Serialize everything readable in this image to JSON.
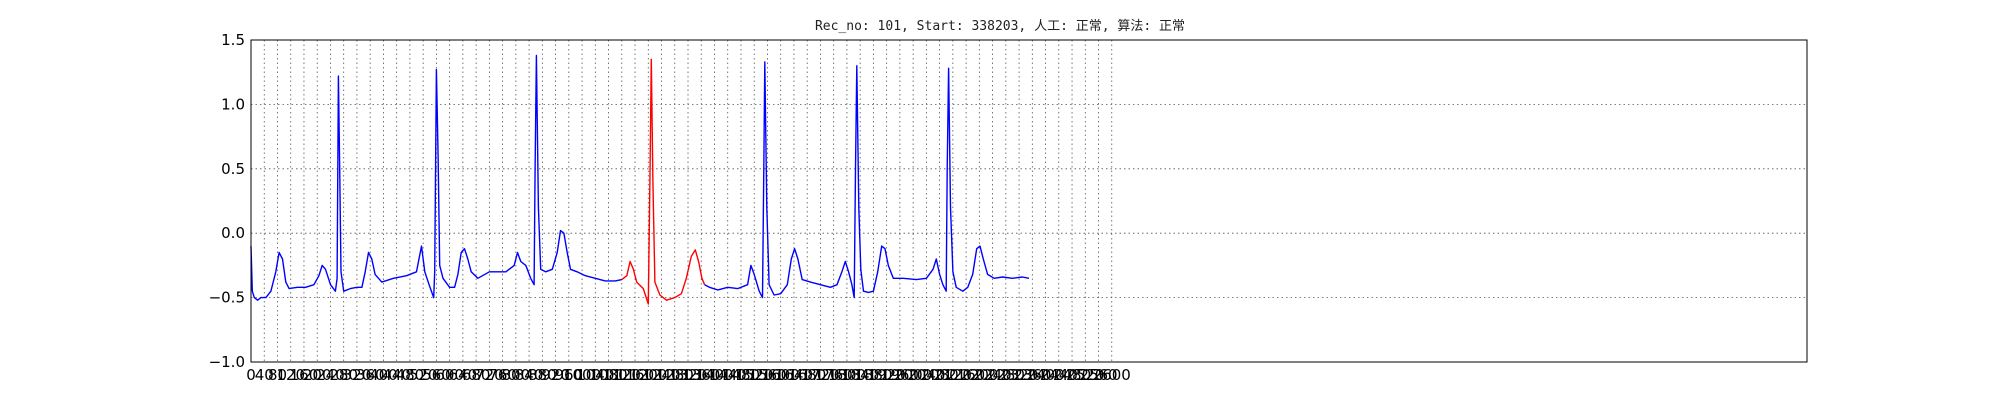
{
  "chart_data": {
    "type": "line",
    "title": "Rec_no: 101, Start: 338203, 人工: 正常, 算法: 正常",
    "xlabel": "",
    "ylabel": "",
    "xlim": [
      0,
      4700
    ],
    "ylim": [
      -1.0,
      1.5
    ],
    "grid": true,
    "y_ticks": [
      -1.0,
      -0.5,
      0.0,
      0.5,
      1.0,
      1.5
    ],
    "y_tick_labels": [
      "−1.0",
      "−0.5",
      "0.0",
      "0.5",
      "1.0",
      "1.5"
    ],
    "x_ticks": [
      0,
      40,
      80,
      120,
      160,
      200,
      240,
      280,
      320,
      360,
      400,
      440,
      480,
      520,
      560,
      600,
      640,
      680,
      720,
      760,
      800,
      840,
      880,
      920,
      960,
      1000,
      1040,
      1080,
      1120,
      1160,
      1200,
      1240,
      1280,
      1320,
      1360,
      1400,
      1440,
      1480,
      1520,
      1560,
      1600,
      1640,
      1680,
      1720,
      1760,
      1800,
      1840,
      1880,
      1920,
      1960,
      2000,
      2040,
      2080,
      2120,
      2160,
      2200,
      2240,
      2280,
      2320,
      2360,
      2400,
      2440,
      2480,
      2520,
      2560,
      2600
    ],
    "series": [
      {
        "color": "#0000ff",
        "segment": "before",
        "points": [
          [
            0,
            -0.1
          ],
          [
            4,
            -0.45
          ],
          [
            10,
            -0.5
          ],
          [
            20,
            -0.52
          ],
          [
            30,
            -0.5
          ],
          [
            45,
            -0.5
          ],
          [
            60,
            -0.45
          ],
          [
            75,
            -0.3
          ],
          [
            85,
            -0.15
          ],
          [
            95,
            -0.2
          ],
          [
            105,
            -0.38
          ],
          [
            115,
            -0.43
          ],
          [
            140,
            -0.42
          ],
          [
            165,
            -0.42
          ],
          [
            190,
            -0.4
          ],
          [
            205,
            -0.33
          ],
          [
            215,
            -0.25
          ],
          [
            225,
            -0.28
          ],
          [
            240,
            -0.4
          ],
          [
            255,
            -0.45
          ],
          [
            260,
            -0.35
          ],
          [
            264,
            1.22
          ],
          [
            268,
            0.5
          ],
          [
            272,
            -0.3
          ],
          [
            280,
            -0.45
          ],
          [
            300,
            -0.43
          ],
          [
            320,
            -0.42
          ],
          [
            335,
            -0.42
          ],
          [
            345,
            -0.3
          ],
          [
            355,
            -0.15
          ],
          [
            365,
            -0.2
          ],
          [
            375,
            -0.32
          ],
          [
            395,
            -0.38
          ],
          [
            430,
            -0.35
          ],
          [
            470,
            -0.33
          ],
          [
            500,
            -0.3
          ],
          [
            515,
            -0.1
          ],
          [
            525,
            -0.3
          ],
          [
            538,
            -0.4
          ],
          [
            552,
            -0.5
          ],
          [
            555,
            -0.3
          ],
          [
            560,
            1.27
          ],
          [
            565,
            0.6
          ],
          [
            570,
            -0.25
          ],
          [
            580,
            -0.35
          ],
          [
            600,
            -0.42
          ],
          [
            615,
            -0.42
          ],
          [
            625,
            -0.32
          ],
          [
            635,
            -0.15
          ],
          [
            645,
            -0.12
          ],
          [
            655,
            -0.2
          ],
          [
            665,
            -0.3
          ],
          [
            685,
            -0.35
          ],
          [
            720,
            -0.3
          ],
          [
            770,
            -0.3
          ],
          [
            795,
            -0.25
          ],
          [
            805,
            -0.15
          ],
          [
            815,
            -0.22
          ],
          [
            830,
            -0.25
          ],
          [
            845,
            -0.35
          ],
          [
            855,
            -0.4
          ],
          [
            858,
            0.5
          ],
          [
            862,
            1.38
          ],
          [
            868,
            0.2
          ],
          [
            875,
            -0.28
          ],
          [
            890,
            -0.3
          ],
          [
            910,
            -0.28
          ],
          [
            925,
            -0.15
          ],
          [
            935,
            0.02
          ],
          [
            945,
            0.0
          ],
          [
            955,
            -0.15
          ],
          [
            965,
            -0.28
          ],
          [
            985,
            -0.3
          ],
          [
            1010,
            -0.33
          ],
          [
            1040,
            -0.35
          ],
          [
            1070,
            -0.37
          ],
          [
            1100,
            -0.37
          ],
          [
            1120,
            -0.36
          ]
        ]
      },
      {
        "color": "#ff0000",
        "segment": "highlight",
        "points": [
          [
            1120,
            -0.36
          ],
          [
            1135,
            -0.33
          ],
          [
            1145,
            -0.22
          ],
          [
            1155,
            -0.28
          ],
          [
            1165,
            -0.38
          ],
          [
            1185,
            -0.43
          ],
          [
            1200,
            -0.55
          ],
          [
            1205,
            0.4
          ],
          [
            1209,
            1.35
          ],
          [
            1214,
            0.4
          ],
          [
            1220,
            -0.38
          ],
          [
            1235,
            -0.48
          ],
          [
            1255,
            -0.52
          ],
          [
            1280,
            -0.5
          ],
          [
            1300,
            -0.47
          ],
          [
            1315,
            -0.35
          ],
          [
            1330,
            -0.18
          ],
          [
            1342,
            -0.13
          ],
          [
            1352,
            -0.22
          ],
          [
            1362,
            -0.35
          ],
          [
            1370,
            -0.4
          ]
        ]
      },
      {
        "color": "#0000ff",
        "segment": "after",
        "points": [
          [
            1370,
            -0.4
          ],
          [
            1385,
            -0.42
          ],
          [
            1410,
            -0.44
          ],
          [
            1440,
            -0.42
          ],
          [
            1470,
            -0.43
          ],
          [
            1500,
            -0.4
          ],
          [
            1510,
            -0.25
          ],
          [
            1520,
            -0.32
          ],
          [
            1535,
            -0.45
          ],
          [
            1545,
            -0.5
          ],
          [
            1549,
            0.5
          ],
          [
            1552,
            1.33
          ],
          [
            1558,
            0.2
          ],
          [
            1565,
            -0.4
          ],
          [
            1580,
            -0.48
          ],
          [
            1600,
            -0.47
          ],
          [
            1620,
            -0.4
          ],
          [
            1632,
            -0.2
          ],
          [
            1642,
            -0.12
          ],
          [
            1652,
            -0.2
          ],
          [
            1665,
            -0.36
          ],
          [
            1690,
            -0.38
          ],
          [
            1720,
            -0.4
          ],
          [
            1750,
            -0.42
          ],
          [
            1770,
            -0.4
          ],
          [
            1785,
            -0.3
          ],
          [
            1795,
            -0.22
          ],
          [
            1805,
            -0.3
          ],
          [
            1815,
            -0.4
          ],
          [
            1822,
            -0.5
          ],
          [
            1826,
            0.5
          ],
          [
            1830,
            1.3
          ],
          [
            1836,
            0.2
          ],
          [
            1842,
            -0.28
          ],
          [
            1850,
            -0.45
          ],
          [
            1865,
            -0.46
          ],
          [
            1880,
            -0.45
          ],
          [
            1893,
            -0.3
          ],
          [
            1905,
            -0.1
          ],
          [
            1915,
            -0.12
          ],
          [
            1925,
            -0.25
          ],
          [
            1940,
            -0.35
          ],
          [
            1970,
            -0.35
          ],
          [
            2010,
            -0.36
          ],
          [
            2040,
            -0.35
          ],
          [
            2060,
            -0.28
          ],
          [
            2070,
            -0.2
          ],
          [
            2080,
            -0.32
          ],
          [
            2090,
            -0.4
          ],
          [
            2100,
            -0.45
          ],
          [
            2103,
            0.5
          ],
          [
            2107,
            1.28
          ],
          [
            2113,
            0.2
          ],
          [
            2120,
            -0.3
          ],
          [
            2130,
            -0.42
          ],
          [
            2150,
            -0.45
          ],
          [
            2165,
            -0.42
          ],
          [
            2180,
            -0.32
          ],
          [
            2192,
            -0.12
          ],
          [
            2202,
            -0.1
          ],
          [
            2212,
            -0.2
          ],
          [
            2225,
            -0.32
          ],
          [
            2245,
            -0.35
          ],
          [
            2270,
            -0.34
          ],
          [
            2300,
            -0.35
          ],
          [
            2330,
            -0.34
          ],
          [
            2350,
            -0.35
          ]
        ]
      }
    ]
  }
}
